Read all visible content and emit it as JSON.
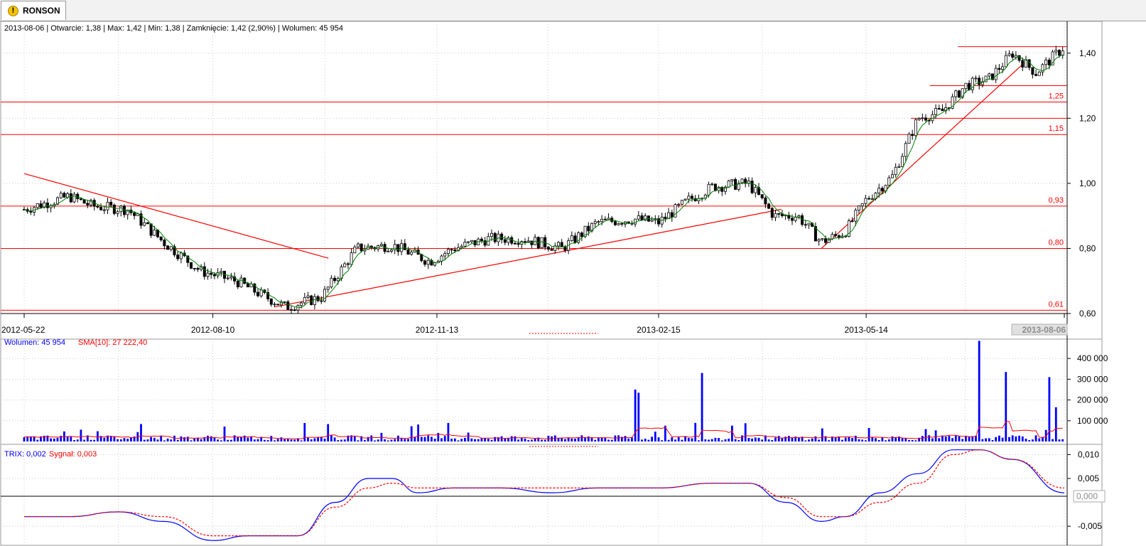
{
  "tab": {
    "label": "RONSON",
    "icon": "warning-icon"
  },
  "price_panel": {
    "info": "2013-08-06 | Otwarcie: 1,38 | Max: 1,42 | Min: 1,38 | Zamknięcie: 1,42 (2,90%)  | Wolumen: 45 954",
    "ytick_labels": [
      "1,40",
      "1,20",
      "1,00",
      "0,80",
      "0,60"
    ],
    "date_labels": [
      "2012-05-22",
      "2012-08-10",
      "2012-11-13",
      "2013-02-15",
      "2013-05-14",
      "2013-08-06"
    ],
    "level_labels": [
      "1,25",
      "1,15",
      "0,93",
      "0,80",
      "0,61"
    ]
  },
  "volume_panel": {
    "legend_volume": "Wolumen: 45 954",
    "legend_sma": "SMA[10]: 27 222,40",
    "ytick_labels": [
      "400 000",
      "300 000",
      "200 000",
      "100 000"
    ]
  },
  "trix_panel": {
    "legend_trix": "TRIX: 0,002",
    "legend_signal": "Sygnał: 0,003",
    "ytick_labels": [
      "0,010",
      "0,005",
      "-0,005"
    ],
    "current_value": "0,000"
  },
  "colors": {
    "candle": "#000000",
    "average": "#008000",
    "levels": "#ff0000",
    "volume": "#0000ff",
    "sma": "#ff0000",
    "trix": "#0000ff",
    "signal": "#ff0000"
  },
  "chart_data": [
    {
      "type": "candlestick",
      "title": "RONSON",
      "x_range": [
        "2012-05-22",
        "2013-08-06"
      ],
      "ylim": [
        0.6,
        1.5
      ],
      "last_bar": {
        "date": "2013-08-06",
        "open": 1.38,
        "high": 1.42,
        "low": 1.38,
        "close": 1.42,
        "change_pct": 2.9
      },
      "horizontal_levels": [
        1.25,
        1.15,
        0.93,
        0.8,
        0.61
      ],
      "close_series": {
        "x": [
          "2012-05-22",
          "2012-06-10",
          "2012-06-20",
          "2012-07-05",
          "2012-07-20",
          "2012-08-05",
          "2012-08-20",
          "2012-08-30",
          "2012-09-10",
          "2012-09-25",
          "2012-10-10",
          "2012-10-25",
          "2012-11-10",
          "2012-11-20",
          "2012-12-05",
          "2012-12-20",
          "2013-01-05",
          "2013-01-20",
          "2013-02-05",
          "2013-02-15",
          "2013-02-28",
          "2013-03-10",
          "2013-03-25",
          "2013-04-05",
          "2013-04-15",
          "2013-04-25",
          "2013-05-05",
          "2013-05-14",
          "2013-05-25",
          "2013-06-05",
          "2013-06-15",
          "2013-06-25",
          "2013-07-05",
          "2013-07-15",
          "2013-07-25",
          "2013-08-06"
        ],
        "y": [
          0.92,
          0.96,
          0.93,
          0.92,
          0.82,
          0.73,
          0.7,
          0.66,
          0.62,
          0.65,
          0.8,
          0.81,
          0.76,
          0.8,
          0.83,
          0.83,
          0.8,
          0.88,
          0.89,
          0.88,
          0.95,
          0.99,
          1.0,
          0.9,
          0.9,
          0.82,
          0.85,
          0.95,
          1.02,
          1.2,
          1.22,
          1.3,
          1.32,
          1.4,
          1.34,
          1.42
        ]
      },
      "trend_lines": [
        {
          "from": [
            "2012-05-22",
            1.03
          ],
          "to": [
            "2012-09-28",
            0.77
          ]
        },
        {
          "from": [
            "2012-09-05",
            0.62
          ],
          "to": [
            "2013-04-08",
            0.92
          ]
        },
        {
          "from": [
            "2013-04-25",
            0.8
          ],
          "to": [
            "2013-07-20",
            1.37
          ]
        }
      ]
    },
    {
      "type": "bar",
      "title": "Wolumen",
      "ylim": [
        0,
        500000
      ],
      "series": [
        {
          "name": "Wolumen",
          "last": 45954
        },
        {
          "name": "SMA[10]",
          "last": 27222.4
        }
      ],
      "notable_bars": [
        {
          "date": "2013-02-05",
          "value": 250000
        },
        {
          "date": "2013-02-06",
          "value": 235000
        },
        {
          "date": "2013-03-05",
          "value": 330000
        },
        {
          "date": "2013-07-01",
          "value": 485000
        },
        {
          "date": "2013-07-12",
          "value": 335000
        },
        {
          "date": "2013-07-31",
          "value": 310000
        },
        {
          "date": "2013-08-02",
          "value": 165000
        }
      ]
    },
    {
      "type": "line",
      "title": "TRIX",
      "ylim": [
        -0.009,
        0.012
      ],
      "series": [
        {
          "name": "TRIX",
          "last": 0.002,
          "x": [
            "2012-05-22",
            "2012-06-10",
            "2012-07-01",
            "2012-07-20",
            "2012-08-10",
            "2012-08-25",
            "2012-09-15",
            "2012-10-01",
            "2012-10-15",
            "2012-10-25",
            "2012-11-05",
            "2012-11-20",
            "2012-12-10",
            "2013-01-01",
            "2013-01-20",
            "2013-02-15",
            "2013-03-10",
            "2013-03-25",
            "2013-04-10",
            "2013-04-25",
            "2013-05-05",
            "2013-05-20",
            "2013-06-05",
            "2013-06-20",
            "2013-07-01",
            "2013-07-15",
            "2013-08-06"
          ],
          "y": [
            -0.003,
            -0.003,
            -0.002,
            -0.004,
            -0.008,
            -0.007,
            -0.007,
            0.0,
            0.005,
            0.005,
            0.002,
            0.003,
            0.003,
            0.002,
            0.003,
            0.003,
            0.004,
            0.004,
            0.0,
            -0.004,
            -0.003,
            0.002,
            0.006,
            0.011,
            0.011,
            0.009,
            0.002
          ]
        },
        {
          "name": "Sygnał",
          "last": 0.003,
          "x": [
            "2012-05-22",
            "2012-06-10",
            "2012-07-01",
            "2012-07-20",
            "2012-08-10",
            "2012-08-25",
            "2012-09-15",
            "2012-10-01",
            "2012-10-15",
            "2012-10-25",
            "2012-11-05",
            "2012-11-20",
            "2012-12-10",
            "2013-01-01",
            "2013-01-20",
            "2013-02-15",
            "2013-03-10",
            "2013-03-25",
            "2013-04-10",
            "2013-04-25",
            "2013-05-05",
            "2013-05-20",
            "2013-06-05",
            "2013-06-20",
            "2013-07-01",
            "2013-07-15",
            "2013-08-06"
          ],
          "y": [
            -0.003,
            -0.003,
            -0.002,
            -0.003,
            -0.007,
            -0.007,
            -0.007,
            -0.001,
            0.003,
            0.004,
            0.003,
            0.003,
            0.003,
            0.003,
            0.003,
            0.003,
            0.004,
            0.004,
            0.001,
            -0.003,
            -0.003,
            0.0,
            0.004,
            0.01,
            0.011,
            0.009,
            0.003
          ]
        }
      ]
    }
  ]
}
